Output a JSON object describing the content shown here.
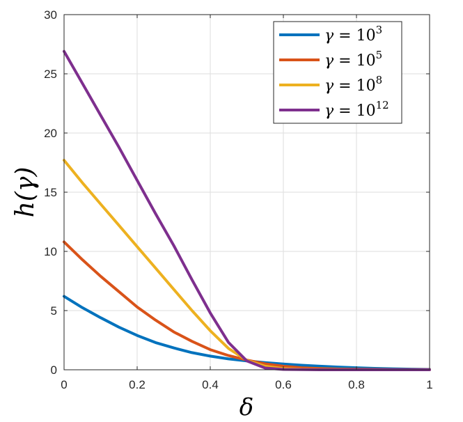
{
  "chart_data": {
    "type": "line",
    "xlabel": "δ",
    "ylabel": "h(γ)",
    "xlim": [
      0,
      1
    ],
    "ylim": [
      0,
      30
    ],
    "xticks": [
      0,
      0.2,
      0.4,
      0.6,
      0.8,
      1
    ],
    "xtick_labels": [
      "0",
      "0.2",
      "0.4",
      "0.6",
      "0.8",
      "1"
    ],
    "yticks": [
      0,
      5,
      10,
      15,
      20,
      25,
      30
    ],
    "ytick_labels": [
      "0",
      "5",
      "10",
      "15",
      "20",
      "25",
      "30"
    ],
    "grid": true,
    "legend_position": "top-right",
    "series": [
      {
        "name": "γ = 10^3",
        "legend": {
          "symbol": "γ",
          "eq": " = ",
          "base": "10",
          "exp": "3"
        },
        "color": "#0072BD",
        "x": [
          0,
          0.05,
          0.1,
          0.15,
          0.2,
          0.25,
          0.3,
          0.35,
          0.4,
          0.45,
          0.5,
          0.55,
          0.6,
          0.65,
          0.7,
          0.75,
          0.8,
          0.85,
          0.9,
          0.95,
          1
        ],
        "y": [
          6.2,
          5.25,
          4.4,
          3.6,
          2.9,
          2.3,
          1.85,
          1.45,
          1.15,
          0.92,
          0.75,
          0.6,
          0.48,
          0.38,
          0.3,
          0.23,
          0.17,
          0.12,
          0.08,
          0.05,
          0.03
        ]
      },
      {
        "name": "γ = 10^5",
        "legend": {
          "symbol": "γ",
          "eq": " = ",
          "base": "10",
          "exp": "5"
        },
        "color": "#D95319",
        "x": [
          0,
          0.05,
          0.1,
          0.15,
          0.2,
          0.25,
          0.3,
          0.35,
          0.4,
          0.45,
          0.5,
          0.55,
          0.6,
          0.65,
          0.7,
          0.75,
          0.8,
          0.85,
          0.9,
          0.95,
          1
        ],
        "y": [
          10.8,
          9.3,
          7.9,
          6.6,
          5.3,
          4.2,
          3.2,
          2.4,
          1.7,
          1.2,
          0.82,
          0.5,
          0.3,
          0.17,
          0.1,
          0.06,
          0.04,
          0.03,
          0.02,
          0.01,
          0.01
        ]
      },
      {
        "name": "γ = 10^8",
        "legend": {
          "symbol": "γ",
          "eq": " = ",
          "base": "10",
          "exp": "8"
        },
        "color": "#EDB120",
        "x": [
          0,
          0.05,
          0.1,
          0.15,
          0.2,
          0.25,
          0.3,
          0.35,
          0.4,
          0.45,
          0.5,
          0.55,
          0.6,
          0.65,
          0.7,
          0.75,
          0.8,
          0.85,
          0.9,
          0.95,
          1
        ],
        "y": [
          17.7,
          15.8,
          14.0,
          12.2,
          10.4,
          8.6,
          6.8,
          5.0,
          3.3,
          1.8,
          0.8,
          0.3,
          0.1,
          0.04,
          0.02,
          0.01,
          0.0,
          0.0,
          0.0,
          0.0,
          0.0
        ]
      },
      {
        "name": "γ = 10^12",
        "legend": {
          "symbol": "γ",
          "eq": " = ",
          "base": "10",
          "exp": "12"
        },
        "color": "#7E2F8E",
        "x": [
          0,
          0.05,
          0.1,
          0.15,
          0.2,
          0.25,
          0.3,
          0.35,
          0.4,
          0.45,
          0.5,
          0.55,
          0.6,
          0.65,
          0.7,
          0.75,
          0.8,
          0.85,
          0.9,
          0.95,
          1
        ],
        "y": [
          26.9,
          24.2,
          21.5,
          18.8,
          16.0,
          13.2,
          10.5,
          7.6,
          4.8,
          2.3,
          0.75,
          0.15,
          0.03,
          0.01,
          0.0,
          0.0,
          0.0,
          0.0,
          0.0,
          0.0,
          0.0
        ]
      }
    ]
  }
}
